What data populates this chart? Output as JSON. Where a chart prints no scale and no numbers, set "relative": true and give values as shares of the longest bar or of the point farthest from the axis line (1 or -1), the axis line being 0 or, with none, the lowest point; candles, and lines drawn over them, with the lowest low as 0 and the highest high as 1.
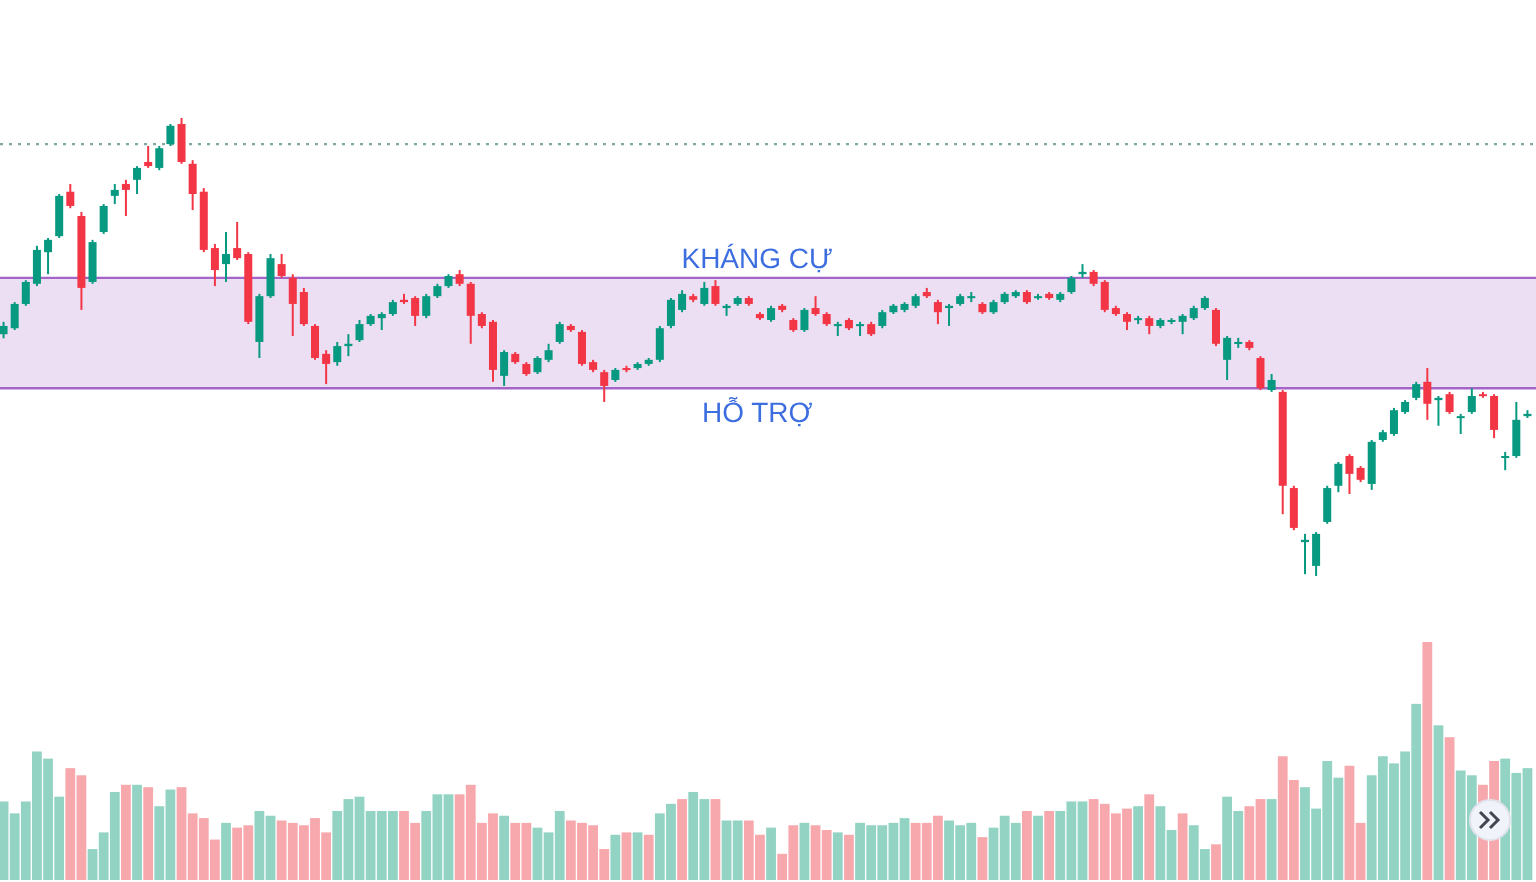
{
  "chart_data": [
    {
      "type": "candlestick",
      "relative": true,
      "colors": [
        "#089981",
        "#089981",
        "#089981",
        "#089981",
        "#089981",
        "#089981",
        "#f23645",
        "#f23645",
        "#089981",
        "#089981",
        "#089981",
        "#f23645",
        "#089981",
        "#f23645",
        "#089981",
        "#089981",
        "#f23645",
        "#f23645",
        "#f23645",
        "#f23645",
        "#089981",
        "#f23645",
        "#f23645",
        "#089981",
        "#089981",
        "#f23645",
        "#f23645",
        "#f23645",
        "#f23645",
        "#f23645",
        "#089981",
        "#089981",
        "#089981",
        "#089981",
        "#089981",
        "#089981",
        "#f23645",
        "#f23645",
        "#089981",
        "#089981",
        "#089981",
        "#f23645",
        "#f23645",
        "#f23645",
        "#f23645",
        "#089981",
        "#f23645",
        "#f23645",
        "#089981",
        "#089981",
        "#089981",
        "#f23645",
        "#f23645",
        "#f23645",
        "#f23645",
        "#089981",
        "#f23645",
        "#089981",
        "#089981",
        "#089981",
        "#089981",
        "#089981",
        "#f23645",
        "#089981",
        "#f23645",
        "#089981",
        "#089981",
        "#f23645",
        "#f23645",
        "#089981",
        "#f23645",
        "#f23645",
        "#089981",
        "#f23645",
        "#f23645",
        "#089981",
        "#f23645",
        "#089981",
        "#f23645",
        "#089981",
        "#089981",
        "#089981",
        "#089981",
        "#f23645",
        "#f23645",
        "#089981",
        "#089981",
        "#089981",
        "#f23645",
        "#089981",
        "#089981",
        "#089981",
        "#f23645",
        "#089981",
        "#f23645",
        "#089981",
        "#089981",
        "#089981",
        "#f23645",
        "#f23645",
        "#f23645",
        "#f23645",
        "#089981",
        "#f23645",
        "#089981",
        "#089981",
        "#089981",
        "#089981",
        "#089981",
        "#f23645",
        "#089981",
        "#089981",
        "#f23645",
        "#f23645",
        "#089981",
        "#f23645",
        "#f23645",
        "#089981",
        "#089981",
        "#089981",
        "#089981",
        "#f23645",
        "#f23645",
        "#089981",
        "#089981",
        "#089981",
        "#089981",
        "#089981",
        "#f23645",
        "#089981",
        "#f23645",
        "#089981",
        "#089981",
        "#f23645",
        "#f23645",
        "#089981",
        "#089981",
        "#089981"
      ],
      "categories": [
        null,
        null,
        null,
        null,
        null,
        null,
        null,
        null,
        null,
        null,
        null,
        null,
        null,
        null,
        null,
        null,
        null,
        null,
        null,
        null,
        null,
        null,
        null,
        null,
        null,
        null,
        null,
        null,
        null,
        null,
        null,
        null,
        null,
        null,
        null,
        null,
        null,
        null,
        null,
        null,
        null,
        null,
        null,
        null,
        null,
        null,
        null,
        null,
        null,
        null,
        null,
        null,
        null,
        null,
        null,
        null,
        null,
        null,
        null,
        null,
        null,
        null,
        null,
        null,
        null,
        null,
        null,
        null,
        null,
        null,
        null,
        null,
        null,
        null,
        null,
        null,
        null,
        null,
        null,
        null,
        null,
        null,
        null,
        null,
        null,
        null,
        null,
        null,
        null,
        null,
        null,
        null,
        null,
        null,
        null,
        null,
        null,
        null,
        null,
        null,
        null,
        null,
        null,
        null,
        null,
        null,
        null,
        null,
        null,
        null,
        null,
        null,
        null,
        null,
        null,
        null,
        null,
        null,
        null,
        null,
        null,
        null,
        null,
        null,
        null,
        null,
        null,
        null,
        null,
        null,
        null,
        null,
        null,
        null,
        null,
        null,
        null,
        null
      ],
      "ohlc": [
        [
          0.528,
          0.555,
          0.519,
          0.546
        ],
        [
          0.541,
          0.598,
          0.537,
          0.594
        ],
        [
          0.594,
          0.646,
          0.59,
          0.642
        ],
        [
          0.638,
          0.721,
          0.633,
          0.712
        ],
        [
          0.707,
          0.738,
          0.659,
          0.734
        ],
        [
          0.742,
          0.834,
          0.738,
          0.83
        ],
        [
          0.839,
          0.856,
          0.803,
          0.808
        ],
        [
          0.786,
          0.795,
          0.581,
          0.629
        ],
        [
          0.642,
          0.734,
          0.638,
          0.729
        ],
        [
          0.751,
          0.812,
          0.747,
          0.808
        ],
        [
          0.83,
          0.856,
          0.812,
          0.843
        ],
        [
          0.856,
          0.865,
          0.786,
          0.843
        ],
        [
          0.865,
          0.895,
          0.834,
          0.891
        ],
        [
          0.904,
          0.939,
          0.891,
          0.895
        ],
        [
          0.891,
          0.939,
          0.886,
          0.934
        ],
        [
          0.943,
          0.987,
          0.939,
          0.983
        ],
        [
          0.987,
          1,
          0.9,
          0.904
        ],
        [
          0.9,
          0.908,
          0.799,
          0.834
        ],
        [
          0.839,
          0.847,
          0.707,
          0.712
        ],
        [
          0.716,
          0.725,
          0.633,
          0.668
        ],
        [
          0.681,
          0.751,
          0.642,
          0.703
        ],
        [
          0.716,
          0.773,
          0.69,
          0.694
        ],
        [
          0.703,
          0.707,
          0.55,
          0.555
        ],
        [
          0.511,
          0.616,
          0.476,
          0.611
        ],
        [
          0.611,
          0.703,
          0.607,
          0.694
        ],
        [
          0.681,
          0.703,
          0.651,
          0.655
        ],
        [
          0.651,
          0.659,
          0.524,
          0.594
        ],
        [
          0.62,
          0.629,
          0.546,
          0.55
        ],
        [
          0.546,
          0.55,
          0.472,
          0.476
        ],
        [
          0.485,
          0.493,
          0.419,
          0.463
        ],
        [
          0.467,
          0.511,
          0.459,
          0.502
        ],
        [
          0.502,
          0.528,
          0.48,
          0.507
        ],
        [
          0.515,
          0.559,
          0.511,
          0.55
        ],
        [
          0.55,
          0.572,
          0.546,
          0.568
        ],
        [
          0.563,
          0.576,
          0.537,
          0.572
        ],
        [
          0.572,
          0.603,
          0.568,
          0.598
        ],
        [
          0.603,
          0.616,
          0.594,
          0.598
        ],
        [
          0.607,
          0.611,
          0.546,
          0.568
        ],
        [
          0.568,
          0.616,
          0.563,
          0.611
        ],
        [
          0.611,
          0.638,
          0.607,
          0.633
        ],
        [
          0.633,
          0.659,
          0.629,
          0.655
        ],
        [
          0.659,
          0.668,
          0.633,
          0.638
        ],
        [
          0.638,
          0.642,
          0.507,
          0.568
        ],
        [
          0.572,
          0.576,
          0.541,
          0.546
        ],
        [
          0.555,
          0.559,
          0.424,
          0.45
        ],
        [
          0.437,
          0.493,
          0.415,
          0.489
        ],
        [
          0.485,
          0.489,
          0.463,
          0.467
        ],
        [
          0.463,
          0.467,
          0.437,
          0.441
        ],
        [
          0.445,
          0.48,
          0.441,
          0.476
        ],
        [
          0.472,
          0.507,
          0.467,
          0.493
        ],
        [
          0.511,
          0.555,
          0.507,
          0.55
        ],
        [
          0.546,
          0.55,
          0.533,
          0.537
        ],
        [
          0.533,
          0.537,
          0.459,
          0.463
        ],
        [
          0.467,
          0.472,
          0.445,
          0.45
        ],
        [
          0.445,
          0.45,
          0.38,
          0.415
        ],
        [
          0.428,
          0.454,
          0.424,
          0.45
        ],
        [
          0.454,
          0.459,
          0.445,
          0.45
        ],
        [
          0.454,
          0.467,
          0.45,
          0.463
        ],
        [
          0.463,
          0.476,
          0.459,
          0.472
        ],
        [
          0.472,
          0.546,
          0.467,
          0.541
        ],
        [
          0.546,
          0.607,
          0.541,
          0.603
        ],
        [
          0.581,
          0.624,
          0.576,
          0.616
        ],
        [
          0.611,
          0.616,
          0.598,
          0.603
        ],
        [
          0.594,
          0.642,
          0.59,
          0.629
        ],
        [
          0.633,
          0.646,
          0.59,
          0.594
        ],
        [
          0.585,
          0.594,
          0.568,
          0.59
        ],
        [
          0.594,
          0.611,
          0.59,
          0.607
        ],
        [
          0.607,
          0.611,
          0.59,
          0.594
        ],
        [
          0.572,
          0.576,
          0.559,
          0.563
        ],
        [
          0.559,
          0.59,
          0.555,
          0.585
        ],
        [
          0.59,
          0.594,
          0.576,
          0.581
        ],
        [
          0.559,
          0.563,
          0.533,
          0.537
        ],
        [
          0.537,
          0.585,
          0.533,
          0.581
        ],
        [
          0.585,
          0.611,
          0.568,
          0.572
        ],
        [
          0.572,
          0.576,
          0.546,
          0.55
        ],
        [
          0.546,
          0.555,
          0.524,
          0.55
        ],
        [
          0.559,
          0.563,
          0.537,
          0.541
        ],
        [
          0.546,
          0.555,
          0.524,
          0.55
        ],
        [
          0.55,
          0.555,
          0.524,
          0.528
        ],
        [
          0.546,
          0.581,
          0.541,
          0.576
        ],
        [
          0.576,
          0.594,
          0.572,
          0.59
        ],
        [
          0.581,
          0.598,
          0.576,
          0.594
        ],
        [
          0.59,
          0.616,
          0.585,
          0.611
        ],
        [
          0.62,
          0.629,
          0.607,
          0.611
        ],
        [
          0.598,
          0.603,
          0.55,
          0.576
        ],
        [
          0.585,
          0.594,
          0.546,
          0.59
        ],
        [
          0.594,
          0.616,
          0.59,
          0.611
        ],
        [
          0.607,
          0.62,
          0.598,
          0.611
        ],
        [
          0.594,
          0.598,
          0.572,
          0.576
        ],
        [
          0.576,
          0.603,
          0.572,
          0.598
        ],
        [
          0.598,
          0.62,
          0.594,
          0.616
        ],
        [
          0.611,
          0.624,
          0.607,
          0.62
        ],
        [
          0.62,
          0.624,
          0.594,
          0.598
        ],
        [
          0.607,
          0.616,
          0.603,
          0.611
        ],
        [
          0.616,
          0.62,
          0.603,
          0.607
        ],
        [
          0.603,
          0.62,
          0.598,
          0.616
        ],
        [
          0.62,
          0.655,
          0.616,
          0.651
        ],
        [
          0.659,
          0.681,
          0.651,
          0.664
        ],
        [
          0.664,
          0.668,
          0.633,
          0.638
        ],
        [
          0.642,
          0.646,
          0.576,
          0.581
        ],
        [
          0.585,
          0.59,
          0.568,
          0.572
        ],
        [
          0.572,
          0.576,
          0.537,
          0.555
        ],
        [
          0.559,
          0.568,
          0.55,
          0.563
        ],
        [
          0.563,
          0.568,
          0.528,
          0.546
        ],
        [
          0.546,
          0.563,
          0.541,
          0.559
        ],
        [
          0.555,
          0.563,
          0.55,
          0.559
        ],
        [
          0.555,
          0.572,
          0.528,
          0.568
        ],
        [
          0.563,
          0.59,
          0.559,
          0.585
        ],
        [
          0.585,
          0.611,
          0.581,
          0.607
        ],
        [
          0.581,
          0.585,
          0.502,
          0.507
        ],
        [
          0.472,
          0.524,
          0.428,
          0.52
        ],
        [
          0.507,
          0.52,
          0.498,
          0.511
        ],
        [
          0.511,
          0.515,
          0.493,
          0.498
        ],
        [
          0.476,
          0.48,
          0.406,
          0.41
        ],
        [
          0.406,
          0.441,
          0.402,
          0.428
        ],
        [
          0.402,
          0.406,
          0.135,
          0.197
        ],
        [
          0.192,
          0.197,
          0.1,
          0.105
        ],
        [
          0.074,
          0.092,
          0.004,
          0.079
        ],
        [
          0.022,
          0.096,
          0,
          0.092
        ],
        [
          0.118,
          0.197,
          0.114,
          0.192
        ],
        [
          0.197,
          0.249,
          0.183,
          0.245
        ],
        [
          0.262,
          0.266,
          0.179,
          0.223
        ],
        [
          0.236,
          0.24,
          0.205,
          0.21
        ],
        [
          0.201,
          0.297,
          0.188,
          0.293
        ],
        [
          0.297,
          0.319,
          0.293,
          0.314
        ],
        [
          0.31,
          0.367,
          0.306,
          0.362
        ],
        [
          0.358,
          0.384,
          0.354,
          0.38
        ],
        [
          0.389,
          0.424,
          0.384,
          0.419
        ],
        [
          0.424,
          0.454,
          0.341,
          0.376
        ],
        [
          0.384,
          0.393,
          0.328,
          0.389
        ],
        [
          0.397,
          0.402,
          0.354,
          0.358
        ],
        [
          0.345,
          0.354,
          0.31,
          0.349
        ],
        [
          0.358,
          0.41,
          0.354,
          0.393
        ],
        [
          0.397,
          0.402,
          0.389,
          0.393
        ],
        [
          0.393,
          0.397,
          0.301,
          0.319
        ],
        [
          0.258,
          0.271,
          0.231,
          0.262
        ],
        [
          0.262,
          0.38,
          0.258,
          0.341
        ],
        [
          0.349,
          0.362,
          0.345,
          0.354
        ]
      ],
      "bands": [
        {
          "axis": "y",
          "from": 0.41,
          "to": 0.651,
          "color": "#e6d3ef"
        }
      ],
      "ref_lines": [
        {
          "axis": "y",
          "value": 0.651,
          "label": "KHÁNG CỰ",
          "color": "#a366c8",
          "line_style": "solid"
        },
        {
          "axis": "y",
          "value": 0.41,
          "label": "HỖ TRỢ",
          "color": "#a366c8",
          "line_style": "solid"
        },
        {
          "axis": "y",
          "value": 0.943,
          "color": "#7fa9a4",
          "line_style": "dotted"
        }
      ]
    },
    {
      "type": "bar",
      "relative": true,
      "categories": [
        null,
        null,
        null,
        null,
        null,
        null,
        null,
        null,
        null,
        null,
        null,
        null,
        null,
        null,
        null,
        null,
        null,
        null,
        null,
        null,
        null,
        null,
        null,
        null,
        null,
        null,
        null,
        null,
        null,
        null,
        null,
        null,
        null,
        null,
        null,
        null,
        null,
        null,
        null,
        null,
        null,
        null,
        null,
        null,
        null,
        null,
        null,
        null,
        null,
        null,
        null,
        null,
        null,
        null,
        null,
        null,
        null,
        null,
        null,
        null,
        null,
        null,
        null,
        null,
        null,
        null,
        null,
        null,
        null,
        null,
        null,
        null,
        null,
        null,
        null,
        null,
        null,
        null,
        null,
        null,
        null,
        null,
        null,
        null,
        null,
        null,
        null,
        null,
        null,
        null,
        null,
        null,
        null,
        null,
        null,
        null,
        null,
        null,
        null,
        null,
        null,
        null,
        null,
        null,
        null,
        null,
        null,
        null,
        null,
        null,
        null,
        null,
        null,
        null,
        null,
        null,
        null,
        null,
        null,
        null,
        null,
        null,
        null,
        null,
        null,
        null,
        null,
        null,
        null,
        null,
        null,
        null,
        null,
        null,
        null,
        null,
        null,
        null
      ],
      "values": [
        0.33,
        0.28,
        0.33,
        0.54,
        0.51,
        0.35,
        0.47,
        0.44,
        0.13,
        0.2,
        0.37,
        0.4,
        0.4,
        0.39,
        0.31,
        0.38,
        0.39,
        0.28,
        0.26,
        0.17,
        0.24,
        0.22,
        0.23,
        0.29,
        0.27,
        0.25,
        0.24,
        0.23,
        0.26,
        0.2,
        0.29,
        0.34,
        0.35,
        0.29,
        0.29,
        0.29,
        0.29,
        0.24,
        0.29,
        0.36,
        0.36,
        0.36,
        0.4,
        0.24,
        0.28,
        0.27,
        0.24,
        0.24,
        0.22,
        0.2,
        0.29,
        0.25,
        0.24,
        0.23,
        0.13,
        0.19,
        0.2,
        0.2,
        0.19,
        0.28,
        0.32,
        0.34,
        0.37,
        0.34,
        0.34,
        0.25,
        0.25,
        0.25,
        0.19,
        0.22,
        0.11,
        0.23,
        0.24,
        0.23,
        0.21,
        0.2,
        0.19,
        0.24,
        0.23,
        0.23,
        0.24,
        0.26,
        0.24,
        0.24,
        0.27,
        0.25,
        0.23,
        0.24,
        0.18,
        0.22,
        0.27,
        0.24,
        0.29,
        0.27,
        0.29,
        0.29,
        0.33,
        0.33,
        0.34,
        0.32,
        0.28,
        0.3,
        0.31,
        0.36,
        0.31,
        0.21,
        0.28,
        0.23,
        0.13,
        0.15,
        0.35,
        0.29,
        0.31,
        0.34,
        0.34,
        0.52,
        0.42,
        0.39,
        0.3,
        0.5,
        0.43,
        0.48,
        0.24,
        0.44,
        0.52,
        0.49,
        0.54,
        0.74,
        1,
        0.65,
        0.6,
        0.46,
        0.44,
        0.4,
        0.5,
        0.51,
        0.45,
        0.47
      ],
      "colors": [
        "#92d3c4",
        "#92d3c4",
        "#92d3c4",
        "#92d3c4",
        "#92d3c4",
        "#92d3c4",
        "#f7a8ad",
        "#f7a8ad",
        "#92d3c4",
        "#92d3c4",
        "#92d3c4",
        "#f7a8ad",
        "#92d3c4",
        "#f7a8ad",
        "#92d3c4",
        "#92d3c4",
        "#f7a8ad",
        "#f7a8ad",
        "#f7a8ad",
        "#f7a8ad",
        "#92d3c4",
        "#f7a8ad",
        "#f7a8ad",
        "#92d3c4",
        "#92d3c4",
        "#f7a8ad",
        "#f7a8ad",
        "#f7a8ad",
        "#f7a8ad",
        "#f7a8ad",
        "#92d3c4",
        "#92d3c4",
        "#92d3c4",
        "#92d3c4",
        "#92d3c4",
        "#92d3c4",
        "#f7a8ad",
        "#f7a8ad",
        "#92d3c4",
        "#92d3c4",
        "#92d3c4",
        "#f7a8ad",
        "#f7a8ad",
        "#f7a8ad",
        "#f7a8ad",
        "#92d3c4",
        "#f7a8ad",
        "#f7a8ad",
        "#92d3c4",
        "#92d3c4",
        "#92d3c4",
        "#f7a8ad",
        "#f7a8ad",
        "#f7a8ad",
        "#f7a8ad",
        "#92d3c4",
        "#f7a8ad",
        "#92d3c4",
        "#f7a8ad",
        "#92d3c4",
        "#92d3c4",
        "#f7a8ad",
        "#92d3c4",
        "#92d3c4",
        "#f7a8ad",
        "#92d3c4",
        "#92d3c4",
        "#f7a8ad",
        "#f7a8ad",
        "#92d3c4",
        "#f7a8ad",
        "#f7a8ad",
        "#92d3c4",
        "#f7a8ad",
        "#f7a8ad",
        "#92d3c4",
        "#f7a8ad",
        "#92d3c4",
        "#92d3c4",
        "#92d3c4",
        "#92d3c4",
        "#92d3c4",
        "#f7a8ad",
        "#f7a8ad",
        "#f7a8ad",
        "#92d3c4",
        "#92d3c4",
        "#92d3c4",
        "#f7a8ad",
        "#92d3c4",
        "#92d3c4",
        "#92d3c4",
        "#f7a8ad",
        "#92d3c4",
        "#f7a8ad",
        "#92d3c4",
        "#92d3c4",
        "#92d3c4",
        "#f7a8ad",
        "#f7a8ad",
        "#f7a8ad",
        "#f7a8ad",
        "#92d3c4",
        "#f7a8ad",
        "#92d3c4",
        "#92d3c4",
        "#f7a8ad",
        "#92d3c4",
        "#92d3c4",
        "#f7a8ad",
        "#92d3c4",
        "#92d3c4",
        "#f7a8ad",
        "#f7a8ad",
        "#92d3c4",
        "#f7a8ad",
        "#f7a8ad",
        "#92d3c4",
        "#92d3c4",
        "#92d3c4",
        "#92d3c4",
        "#f7a8ad",
        "#f7a8ad",
        "#92d3c4",
        "#92d3c4",
        "#92d3c4",
        "#92d3c4",
        "#92d3c4",
        "#f7a8ad",
        "#92d3c4",
        "#f7a8ad",
        "#92d3c4",
        "#92d3c4",
        "#f7a8ad",
        "#f7a8ad",
        "#92d3c4",
        "#92d3c4",
        "#92d3c4"
      ]
    }
  ]
}
